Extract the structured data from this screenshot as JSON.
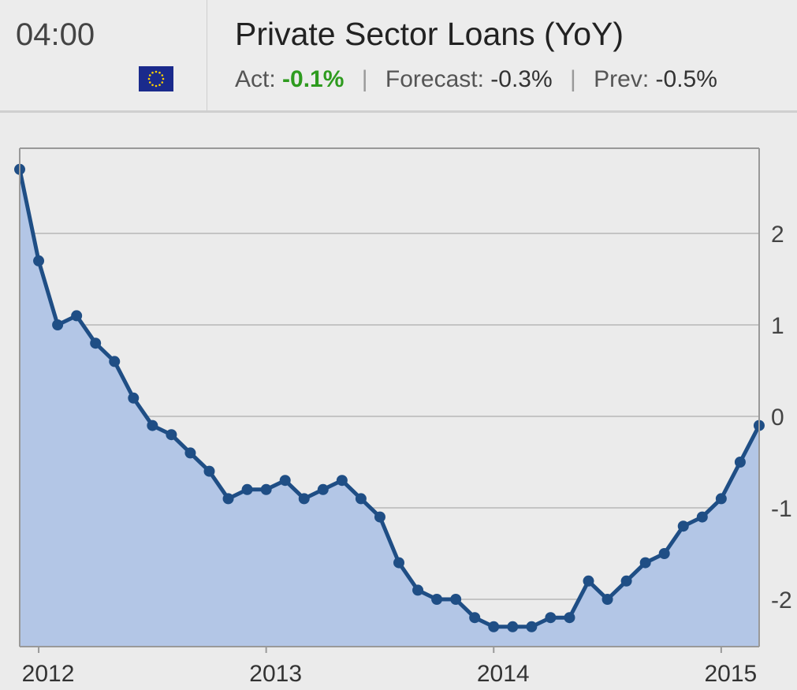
{
  "header": {
    "time": "04:00",
    "flag_icon": "eu-flag-icon",
    "title": "Private Sector Loans (YoY)",
    "act_label": "Act:",
    "act_value": "-0.1%",
    "forecast_label": "Forecast:",
    "forecast_value": "-0.3%",
    "prev_label": "Prev:",
    "prev_value": "-0.5%",
    "colors": {
      "actual_positive": "#2e9b1f"
    }
  },
  "chart_data": {
    "type": "area",
    "x_labels": [
      "2012",
      "2013",
      "2014",
      "2015"
    ],
    "y_ticks": [
      2,
      1,
      0,
      -1,
      -2
    ],
    "ylim": [
      -2.5,
      2.9
    ],
    "grid": true,
    "y_axis_position": "right",
    "x_start": "2011-12",
    "x_step": "month",
    "series": [
      {
        "values": [
          2.7,
          1.7,
          1.0,
          1.1,
          0.8,
          0.6,
          0.2,
          -0.1,
          -0.2,
          -0.4,
          -0.6,
          -0.9,
          -0.8,
          -0.8,
          -0.7,
          -0.9,
          -0.8,
          -0.7,
          -0.9,
          -1.1,
          -1.6,
          -1.9,
          -2.0,
          -2.0,
          -2.2,
          -2.3,
          -2.3,
          -2.3,
          -2.2,
          -2.2,
          -1.8,
          -2.0,
          -1.8,
          -1.6,
          -1.5,
          -1.2,
          -1.1,
          -0.9,
          -0.5,
          -0.1
        ]
      }
    ],
    "colors": {
      "line": "#1f4e85",
      "fill": "#b3c6e6"
    }
  }
}
